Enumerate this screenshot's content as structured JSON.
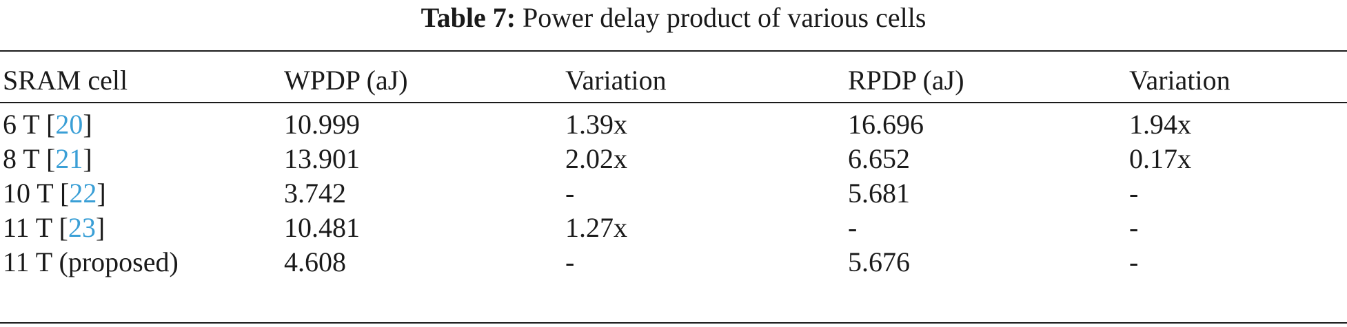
{
  "caption": {
    "label": "Table 7:",
    "text": "Power delay product of various cells"
  },
  "table": {
    "headers": [
      "SRAM cell",
      "WPDP (aJ)",
      "Variation",
      "RPDP (aJ)",
      "Variation"
    ],
    "rows": [
      {
        "cell_prefix": "6 T [",
        "ref": "20",
        "cell_suffix": "]",
        "wpdp": "10.999",
        "wvar": "1.39x",
        "rpdp": "16.696",
        "rvar": "1.94x"
      },
      {
        "cell_prefix": "8 T [",
        "ref": "21",
        "cell_suffix": "]",
        "wpdp": "13.901",
        "wvar": "2.02x",
        "rpdp": "6.652",
        "rvar": "0.17x"
      },
      {
        "cell_prefix": "10 T [",
        "ref": "22",
        "cell_suffix": "]",
        "wpdp": "3.742",
        "wvar": "-",
        "rpdp": "5.681",
        "rvar": "-"
      },
      {
        "cell_prefix": "11 T [",
        "ref": "23",
        "cell_suffix": "]",
        "wpdp": "10.481",
        "wvar": "1.27x",
        "rpdp": "-",
        "rvar": "-"
      },
      {
        "cell_prefix": "11 T (proposed)",
        "ref": "",
        "cell_suffix": "",
        "wpdp": "4.608",
        "wvar": "-",
        "rpdp": "5.676",
        "rvar": "-"
      }
    ]
  },
  "colors": {
    "text": "#1a1a1a",
    "reference_link": "#3a9fd6"
  }
}
